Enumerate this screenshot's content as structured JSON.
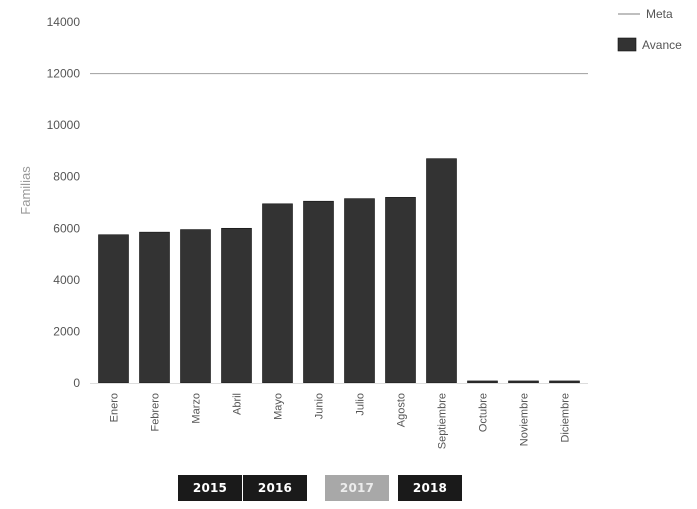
{
  "chart_data": {
    "type": "bar",
    "ylabel": "Familias",
    "xlabel": "",
    "ylim": [
      0,
      14000
    ],
    "yticks": [
      0,
      2000,
      4000,
      6000,
      8000,
      10000,
      12000,
      14000
    ],
    "grid": false,
    "legend_position": "top-right",
    "categories": [
      "Enero",
      "Febrero",
      "Marzo",
      "Abril",
      "Mayo",
      "Junio",
      "Julio",
      "Agosto",
      "Septiembre",
      "Octubre",
      "Noviembre",
      "Diciembre"
    ],
    "series": [
      {
        "name": "Avance",
        "type": "bar",
        "color": "#333333",
        "values": [
          5750,
          5850,
          5950,
          6000,
          6950,
          7050,
          7150,
          7200,
          8700,
          80,
          80,
          80
        ]
      },
      {
        "name": "Meta",
        "type": "line",
        "color": "#aaaaaa",
        "value": 12000
      }
    ]
  },
  "year_buttons": [
    {
      "label": "2015",
      "active": false
    },
    {
      "label": "2016",
      "active": false
    },
    {
      "label": "2017",
      "active": true
    },
    {
      "label": "2018",
      "active": false
    }
  ]
}
